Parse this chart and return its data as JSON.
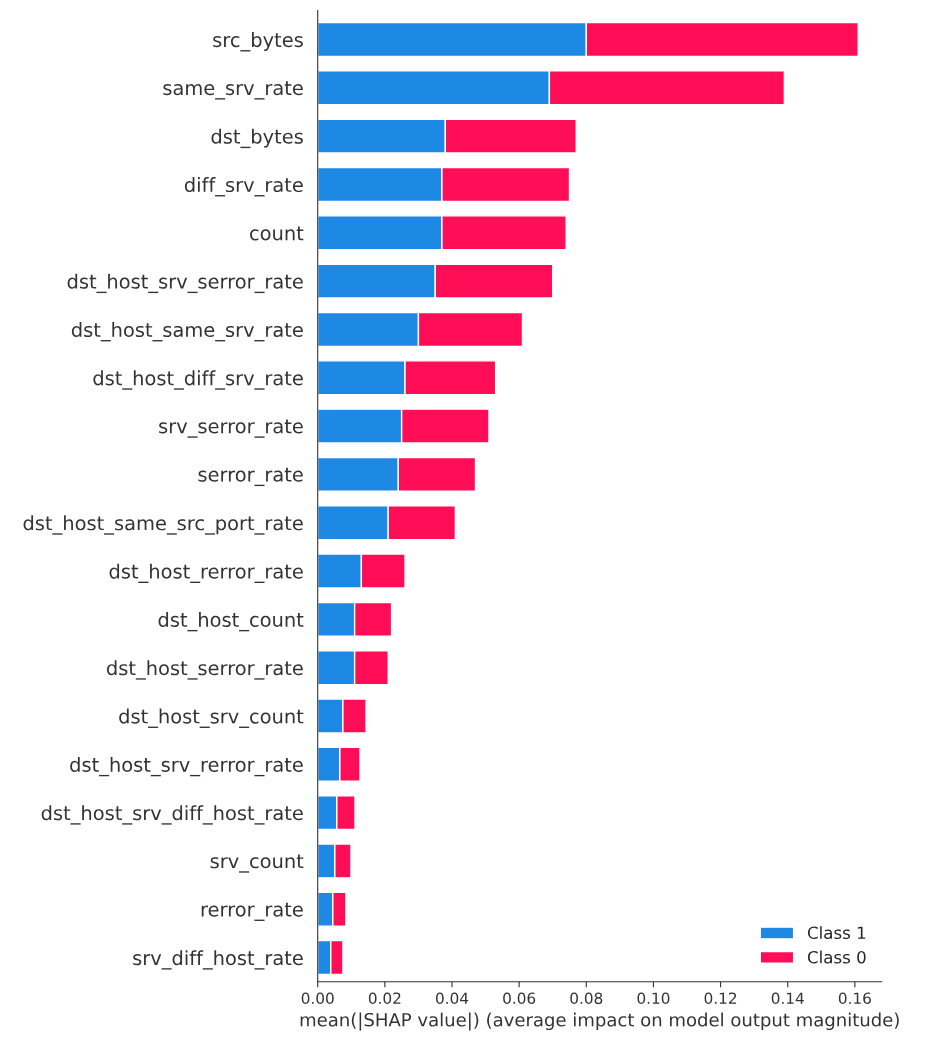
{
  "chart_data": {
    "type": "bar",
    "orientation": "horizontal",
    "stacked": true,
    "xlabel": "mean(|SHAP value|) (average impact on model output magnitude)",
    "categories": [
      "src_bytes",
      "same_srv_rate",
      "dst_bytes",
      "diff_srv_rate",
      "count",
      "dst_host_srv_serror_rate",
      "dst_host_same_srv_rate",
      "dst_host_diff_srv_rate",
      "srv_serror_rate",
      "serror_rate",
      "dst_host_same_src_port_rate",
      "dst_host_rerror_rate",
      "dst_host_count",
      "dst_host_serror_rate",
      "dst_host_srv_count",
      "dst_host_srv_rerror_rate",
      "dst_host_srv_diff_host_rate",
      "srv_count",
      "rerror_rate",
      "srv_diff_host_rate"
    ],
    "series": [
      {
        "name": "Class 1",
        "color": "#1e88e5",
        "values": [
          0.08,
          0.069,
          0.038,
          0.037,
          0.037,
          0.035,
          0.03,
          0.026,
          0.025,
          0.024,
          0.021,
          0.013,
          0.011,
          0.011,
          0.0075,
          0.0066,
          0.0057,
          0.0051,
          0.0045,
          0.0039
        ]
      },
      {
        "name": "Class 0",
        "color": "#ff0d57",
        "values": [
          0.081,
          0.07,
          0.039,
          0.038,
          0.037,
          0.035,
          0.031,
          0.027,
          0.026,
          0.023,
          0.02,
          0.013,
          0.011,
          0.01,
          0.0069,
          0.006,
          0.0054,
          0.0048,
          0.0039,
          0.0036
        ]
      }
    ],
    "xlim": [
      0,
      0.168
    ],
    "xticks": [
      {
        "value": 0,
        "label": "0.00"
      },
      {
        "value": 0.02,
        "label": "0.02"
      },
      {
        "value": 0.04,
        "label": "0.04"
      },
      {
        "value": 0.06,
        "label": "0.06"
      },
      {
        "value": 0.08,
        "label": "0.08"
      },
      {
        "value": 0.1,
        "label": "0.10"
      },
      {
        "value": 0.12,
        "label": "0.12"
      },
      {
        "value": 0.14,
        "label": "0.14"
      },
      {
        "value": 0.16,
        "label": "0.16"
      }
    ],
    "grid": false,
    "legend": "bottom right"
  }
}
